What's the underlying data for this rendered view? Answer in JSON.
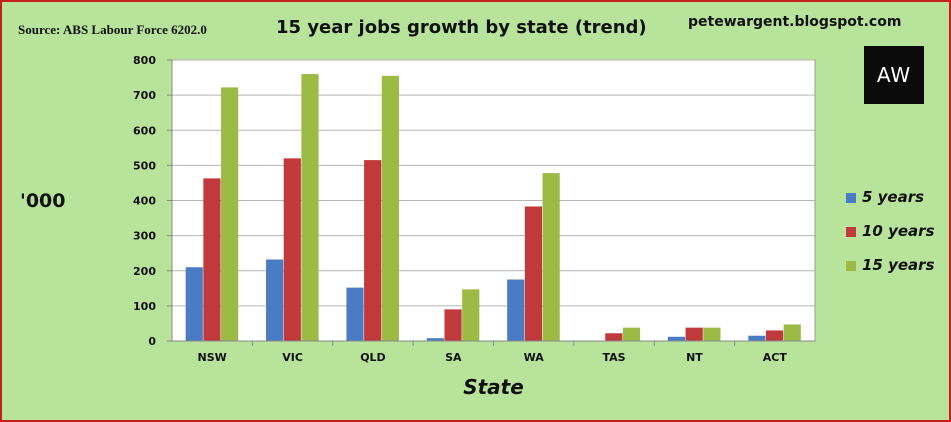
{
  "header": {
    "source": "Source: ABS Labour Force 6202.0",
    "blog": "petewargent.blogspot.com",
    "logo_text": "AW"
  },
  "chart_data": {
    "type": "bar",
    "title": "15 year jobs growth by state (trend)",
    "xlabel": "State",
    "ylabel": "'000",
    "ylim": [
      0,
      800
    ],
    "yticks": [
      0,
      100,
      200,
      300,
      400,
      500,
      600,
      700,
      800
    ],
    "grid": true,
    "legend_position": "right",
    "categories": [
      "NSW",
      "VIC",
      "QLD",
      "SA",
      "WA",
      "TAS",
      "NT",
      "ACT"
    ],
    "series": [
      {
        "name": "5 years",
        "color": "#4a7cc4",
        "values": [
          210,
          232,
          152,
          8,
          175,
          0,
          12,
          15
        ]
      },
      {
        "name": "10 years",
        "color": "#c0393b",
        "values": [
          463,
          520,
          515,
          90,
          383,
          22,
          38,
          30
        ]
      },
      {
        "name": "15 years",
        "color": "#9bbb45",
        "values": [
          722,
          760,
          755,
          147,
          478,
          38,
          38,
          47
        ]
      }
    ]
  }
}
